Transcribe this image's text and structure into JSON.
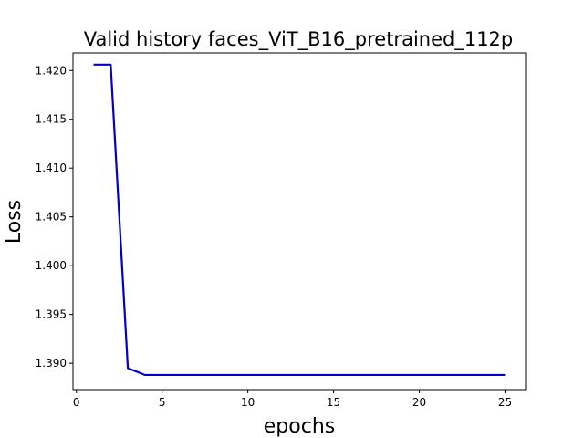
{
  "chart_data": {
    "type": "line",
    "title": "Valid history faces_ViT_B16_pretrained_112p",
    "xlabel": "epochs",
    "ylabel": "Loss",
    "xlim": [
      -0.2,
      26.2
    ],
    "ylim": [
      1.3873,
      1.4218
    ],
    "xticks": [
      0,
      5,
      10,
      15,
      20,
      25
    ],
    "yticks": [
      1.39,
      1.395,
      1.4,
      1.405,
      1.41,
      1.415,
      1.42
    ],
    "ytick_labels": [
      "1.390",
      "1.395",
      "1.400",
      "1.405",
      "1.410",
      "1.415",
      "1.420"
    ],
    "grid": false,
    "series": [
      {
        "color": "#0000cc",
        "x": [
          1,
          2,
          3,
          4,
          5,
          6,
          7,
          8,
          9,
          10,
          11,
          12,
          13,
          14,
          15,
          16,
          17,
          18,
          19,
          20,
          21,
          22,
          23,
          24,
          25
        ],
        "y": [
          1.4206,
          1.4206,
          1.3895,
          1.3888,
          1.3888,
          1.3888,
          1.3888,
          1.3888,
          1.3888,
          1.3888,
          1.3888,
          1.3888,
          1.3888,
          1.3888,
          1.3888,
          1.3888,
          1.3888,
          1.3888,
          1.3888,
          1.3888,
          1.3888,
          1.3888,
          1.3888,
          1.3888,
          1.3888
        ]
      }
    ]
  }
}
